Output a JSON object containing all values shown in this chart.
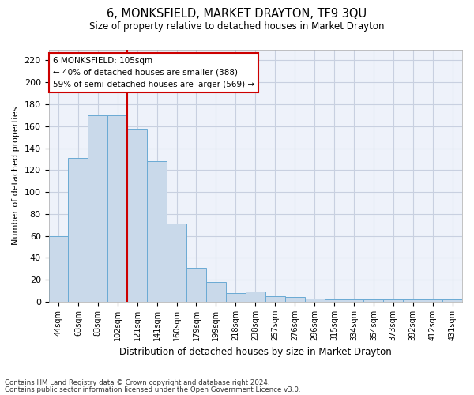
{
  "title": "6, MONKSFIELD, MARKET DRAYTON, TF9 3QU",
  "subtitle": "Size of property relative to detached houses in Market Drayton",
  "xlabel": "Distribution of detached houses by size in Market Drayton",
  "ylabel": "Number of detached properties",
  "categories": [
    "44sqm",
    "63sqm",
    "83sqm",
    "102sqm",
    "121sqm",
    "141sqm",
    "160sqm",
    "179sqm",
    "199sqm",
    "218sqm",
    "238sqm",
    "257sqm",
    "276sqm",
    "296sqm",
    "315sqm",
    "334sqm",
    "354sqm",
    "373sqm",
    "392sqm",
    "412sqm",
    "431sqm"
  ],
  "bar_values": [
    60,
    131,
    170,
    170,
    158,
    128,
    71,
    31,
    18,
    8,
    9,
    5,
    4,
    3,
    2,
    2,
    2,
    2,
    2,
    2,
    2
  ],
  "bar_color": "#c9d9ea",
  "bar_edge_color": "#6aaad4",
  "vline_x_index": 3,
  "vline_color": "#cc0000",
  "annotation_text": "6 MONKSFIELD: 105sqm\n← 40% of detached houses are smaller (388)\n59% of semi-detached houses are larger (569) →",
  "annotation_box_color": "#ffffff",
  "annotation_box_edge": "#cc0000",
  "ylim": [
    0,
    230
  ],
  "yticks": [
    0,
    20,
    40,
    60,
    80,
    100,
    120,
    140,
    160,
    180,
    200,
    220
  ],
  "grid_color": "#c8d0e0",
  "background_color": "#eef2fa",
  "footer1": "Contains HM Land Registry data © Crown copyright and database right 2024.",
  "footer2": "Contains public sector information licensed under the Open Government Licence v3.0."
}
